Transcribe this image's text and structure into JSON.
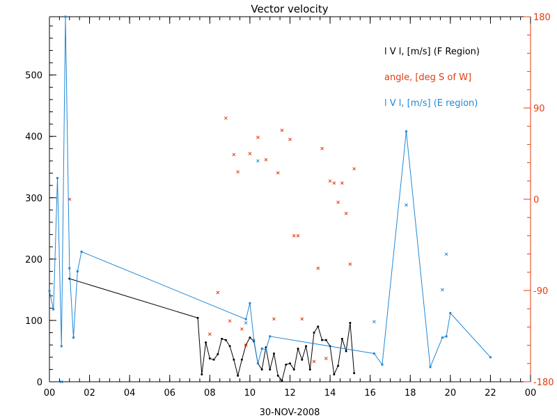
{
  "chart_data": {
    "type": "line",
    "title": "Vector velocity",
    "xlabel": "30-NOV-2008",
    "x_ticks": [
      "00",
      "02",
      "04",
      "06",
      "08",
      "10",
      "12",
      "14",
      "16",
      "18",
      "20",
      "22",
      "00"
    ],
    "xlim": [
      0,
      24
    ],
    "ylim": [
      0,
      595
    ],
    "y_ticks": [
      "0",
      "100",
      "200",
      "300",
      "400",
      "500"
    ],
    "y2lim": [
      -180,
      180
    ],
    "y2_ticks": [
      "-180",
      "-90",
      "0",
      "90",
      "180"
    ],
    "legend_position": "top-right",
    "colors": {
      "f_region": "#000000",
      "angle": "#e23c0f",
      "e_region": "#1f88d6"
    },
    "series": [
      {
        "name": "l V l, [m/s] (F Region)",
        "key": "f_region",
        "marker": "dot",
        "line": true,
        "axis": "left",
        "x": [
          1.0,
          7.4,
          7.6,
          7.8,
          8.0,
          8.2,
          8.4,
          8.6,
          8.8,
          9.0,
          9.2,
          9.4,
          9.6,
          9.8,
          10.0,
          10.2,
          10.4,
          10.6,
          10.8,
          11.0,
          11.2,
          11.4,
          11.6,
          11.8,
          12.0,
          12.2,
          12.4,
          12.6,
          12.8,
          13.0,
          13.2,
          13.4,
          13.6,
          13.8,
          14.0,
          14.2,
          14.4,
          14.6,
          14.8,
          15.0,
          15.2
        ],
        "y": [
          168,
          104,
          12,
          64,
          38,
          36,
          45,
          70,
          68,
          58,
          36,
          10,
          36,
          60,
          72,
          66,
          30,
          20,
          56,
          20,
          46,
          10,
          2,
          28,
          30,
          20,
          54,
          36,
          58,
          20,
          80,
          90,
          68,
          68,
          58,
          12,
          26,
          70,
          50,
          96,
          14
        ]
      },
      {
        "name": "angle, [deg S of W]",
        "key": "angle",
        "marker": "x",
        "line": false,
        "axis": "right",
        "x": [
          1.0,
          8.0,
          8.4,
          8.8,
          9.0,
          9.2,
          9.4,
          9.6,
          9.8,
          10.0,
          10.4,
          10.8,
          11.2,
          11.4,
          11.6,
          12.0,
          12.2,
          12.4,
          12.6,
          13.2,
          13.4,
          13.6,
          13.8,
          14.0,
          14.2,
          14.4,
          14.6,
          14.8,
          15.0,
          15.2
        ],
        "y": [
          0,
          -133,
          -92,
          80,
          -120,
          44,
          27,
          -128,
          -144,
          45,
          61,
          39,
          -118,
          26,
          68,
          59,
          -36,
          -36,
          -118,
          -160,
          -68,
          50,
          -157,
          18,
          16,
          -3,
          16,
          -14,
          -64,
          30
        ]
      },
      {
        "name": "l V l, [m/s] (E region)",
        "key": "e_region",
        "marker": "square",
        "line": true,
        "axis": "left",
        "x": [
          0.0,
          0.2,
          0.4,
          0.6,
          0.8,
          1.0,
          1.2,
          1.4,
          1.6,
          9.8,
          10.0,
          10.2,
          10.4,
          10.6,
          10.8,
          11.0,
          16.2,
          16.6,
          17.8,
          19.0,
          19.6,
          19.8,
          20.0,
          22.0
        ],
        "y": [
          148,
          118,
          332,
          58,
          595,
          185,
          72,
          180,
          212,
          102,
          128,
          68,
          30,
          54,
          52,
          74,
          46,
          28,
          408,
          24,
          72,
          74,
          112,
          40
        ]
      },
      {
        "name": "l V l, [m/s] (E region) scatter",
        "key": "e_region",
        "marker": "x",
        "line": false,
        "axis": "left",
        "x": [
          0.6,
          9.8,
          10.4,
          16.2,
          17.8,
          19.6,
          19.8
        ],
        "y": [
          0,
          96,
          360,
          98,
          288,
          150,
          208
        ]
      }
    ]
  }
}
